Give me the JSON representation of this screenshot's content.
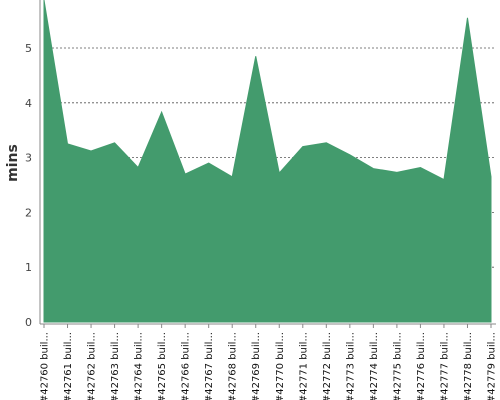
{
  "chart_data": {
    "type": "area",
    "title": "",
    "xlabel": "",
    "ylabel": "mins",
    "ylim": [
      0,
      5.8
    ],
    "yticks": [
      0,
      1,
      2,
      3,
      4,
      5
    ],
    "grid": true,
    "legend": "none",
    "categories": [
      "#42760 buil...",
      "#42761 buil...",
      "#42762 buil...",
      "#42763 buil...",
      "#42764 buil...",
      "#42765 buil...",
      "#42766 buil...",
      "#42767 buil...",
      "#42768 buil...",
      "#42769 buil...",
      "#42770 buil...",
      "#42771 buil...",
      "#42772 buil...",
      "#42773 buil...",
      "#42774 buil...",
      "#42775 buil...",
      "#42776 buil...",
      "#42777 buil...",
      "#42778 buil...",
      "#42779 buil..."
    ],
    "series": [
      {
        "values": [
          5.9,
          3.25,
          3.12,
          3.27,
          2.82,
          3.83,
          2.7,
          2.9,
          2.65,
          4.85,
          2.72,
          3.2,
          3.27,
          3.05,
          2.8,
          2.73,
          2.82,
          2.6,
          5.55,
          2.65
        ]
      }
    ],
    "colors": {
      "fill": "#439b6d",
      "grid": "#555555",
      "axis": "#888888"
    }
  }
}
